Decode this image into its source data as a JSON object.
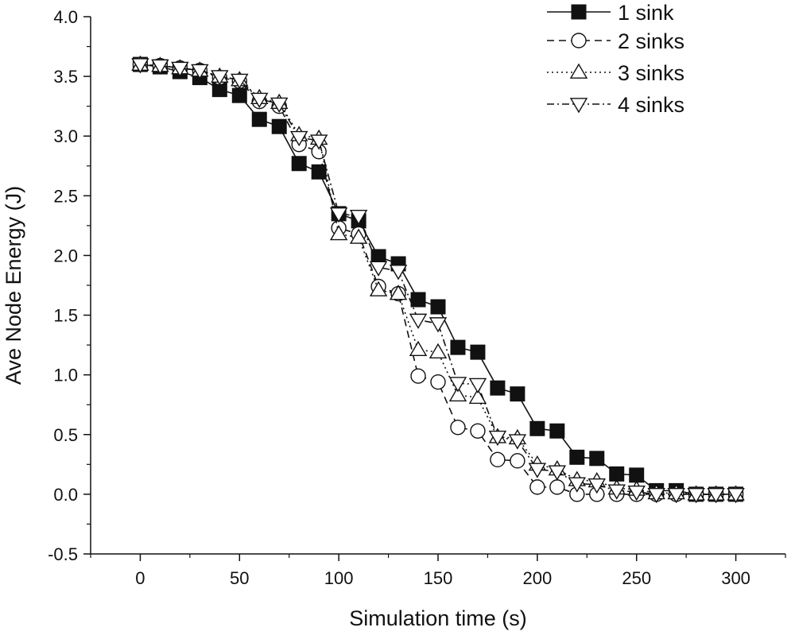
{
  "chart_data": {
    "type": "line",
    "title": "",
    "xlabel": "Simulation time (s)",
    "ylabel": "Ave Node Energy (J)",
    "xlim": [
      -25,
      325
    ],
    "ylim": [
      -0.5,
      4.0
    ],
    "xticks": [
      0,
      50,
      100,
      150,
      200,
      250,
      300
    ],
    "xtick_labels": [
      "0",
      "50",
      "100",
      "150",
      "200",
      "250",
      "300"
    ],
    "yticks": [
      -0.5,
      0.0,
      0.5,
      1.0,
      1.5,
      2.0,
      2.5,
      3.0,
      3.5,
      4.0
    ],
    "ytick_labels": [
      "-0.5",
      "0.0",
      "0.5",
      "1.0",
      "1.5",
      "2.0",
      "2.5",
      "3.0",
      "3.5",
      "4.0"
    ],
    "grid": false,
    "legend_position": "top-right",
    "x": [
      0,
      10,
      20,
      30,
      40,
      50,
      60,
      70,
      80,
      90,
      100,
      110,
      120,
      130,
      140,
      150,
      160,
      170,
      180,
      190,
      200,
      210,
      220,
      230,
      240,
      250,
      260,
      270,
      280,
      290,
      300
    ],
    "series": [
      {
        "name": "1 sink",
        "marker": "filled-square",
        "line_style": "solid",
        "values": [
          3.6,
          3.58,
          3.54,
          3.49,
          3.39,
          3.34,
          3.14,
          3.08,
          2.77,
          2.7,
          2.35,
          2.29,
          1.99,
          1.93,
          1.63,
          1.57,
          1.23,
          1.19,
          0.89,
          0.84,
          0.55,
          0.53,
          0.31,
          0.3,
          0.17,
          0.16,
          0.03,
          0.03,
          0.0,
          0.0,
          0.0
        ]
      },
      {
        "name": "2 sinks",
        "marker": "open-circle",
        "line_style": "dashed",
        "values": [
          3.6,
          3.59,
          3.57,
          3.55,
          3.49,
          3.46,
          3.29,
          3.25,
          2.93,
          2.87,
          2.23,
          2.18,
          1.74,
          1.68,
          0.99,
          0.94,
          0.56,
          0.53,
          0.29,
          0.28,
          0.06,
          0.06,
          0.0,
          0.0,
          0.0,
          0.0,
          0.0,
          0.0,
          0.0,
          0.0,
          0.0
        ]
      },
      {
        "name": "3 sinks",
        "marker": "open-triangle-up",
        "line_style": "dotted",
        "values": [
          3.6,
          3.59,
          3.57,
          3.55,
          3.5,
          3.47,
          3.32,
          3.28,
          3.01,
          2.98,
          2.18,
          2.15,
          1.71,
          1.68,
          1.21,
          1.19,
          0.83,
          0.81,
          0.48,
          0.47,
          0.25,
          0.21,
          0.12,
          0.11,
          0.05,
          0.04,
          0.01,
          0.01,
          0.0,
          0.0,
          0.0
        ]
      },
      {
        "name": "4 sinks",
        "marker": "open-triangle-down",
        "line_style": "dash-dot",
        "values": [
          3.6,
          3.59,
          3.57,
          3.55,
          3.5,
          3.47,
          3.31,
          3.27,
          2.99,
          2.96,
          2.35,
          2.33,
          1.9,
          1.87,
          1.46,
          1.43,
          0.93,
          0.92,
          0.48,
          0.45,
          0.21,
          0.19,
          0.09,
          0.08,
          0.03,
          0.02,
          0.0,
          0.0,
          0.0,
          0.0,
          0.0
        ]
      }
    ]
  }
}
